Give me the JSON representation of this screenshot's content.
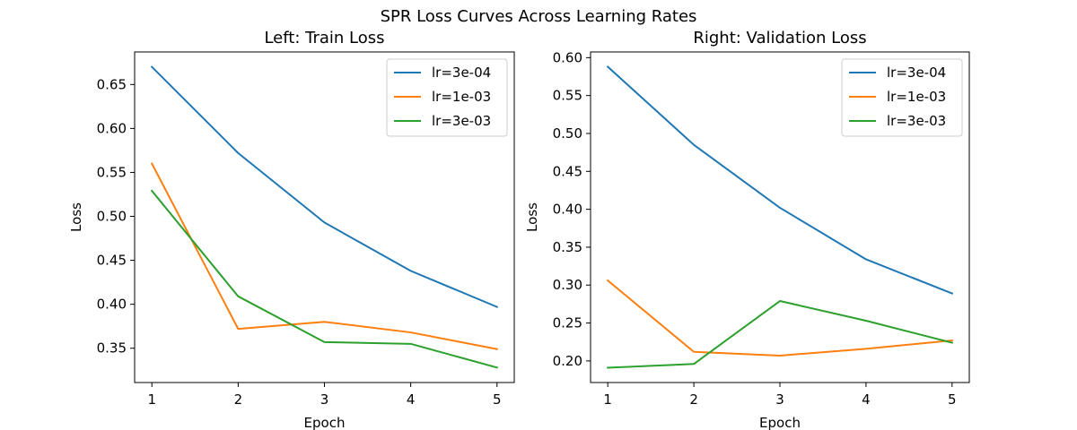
{
  "figure": {
    "title": "SPR Loss Curves Across Learning Rates"
  },
  "chart_data": [
    {
      "type": "line",
      "title": "Left: Train Loss",
      "xlabel": "Epoch",
      "ylabel": "Loss",
      "x": [
        1,
        2,
        3,
        4,
        5
      ],
      "xticks": [
        1,
        2,
        3,
        4,
        5
      ],
      "yticks": [
        0.35,
        0.4,
        0.45,
        0.5,
        0.55,
        0.6,
        0.65
      ],
      "ylim": [
        0.311,
        0.687
      ],
      "grid": false,
      "legend": "top-right",
      "series": [
        {
          "name": "lr=3e-04",
          "color": "#1f77b4",
          "values": [
            0.67,
            0.572,
            0.493,
            0.438,
            0.397
          ]
        },
        {
          "name": "lr=1e-03",
          "color": "#ff7f0e",
          "values": [
            0.56,
            0.372,
            0.38,
            0.368,
            0.349
          ]
        },
        {
          "name": "lr=3e-03",
          "color": "#2ca02c",
          "values": [
            0.529,
            0.409,
            0.357,
            0.355,
            0.328
          ]
        }
      ]
    },
    {
      "type": "line",
      "title": "Right: Validation Loss",
      "xlabel": "Epoch",
      "ylabel": "Loss",
      "x": [
        1,
        2,
        3,
        4,
        5
      ],
      "xticks": [
        1,
        2,
        3,
        4,
        5
      ],
      "yticks": [
        0.2,
        0.25,
        0.3,
        0.35,
        0.4,
        0.45,
        0.5,
        0.55,
        0.6
      ],
      "ylim": [
        0.1715,
        0.6075
      ],
      "grid": false,
      "legend": "top-right",
      "series": [
        {
          "name": "lr=3e-04",
          "color": "#1f77b4",
          "values": [
            0.588,
            0.485,
            0.402,
            0.334,
            0.289
          ]
        },
        {
          "name": "lr=1e-03",
          "color": "#ff7f0e",
          "values": [
            0.306,
            0.212,
            0.207,
            0.216,
            0.227
          ]
        },
        {
          "name": "lr=3e-03",
          "color": "#2ca02c",
          "values": [
            0.191,
            0.196,
            0.279,
            0.253,
            0.224
          ]
        }
      ]
    }
  ]
}
